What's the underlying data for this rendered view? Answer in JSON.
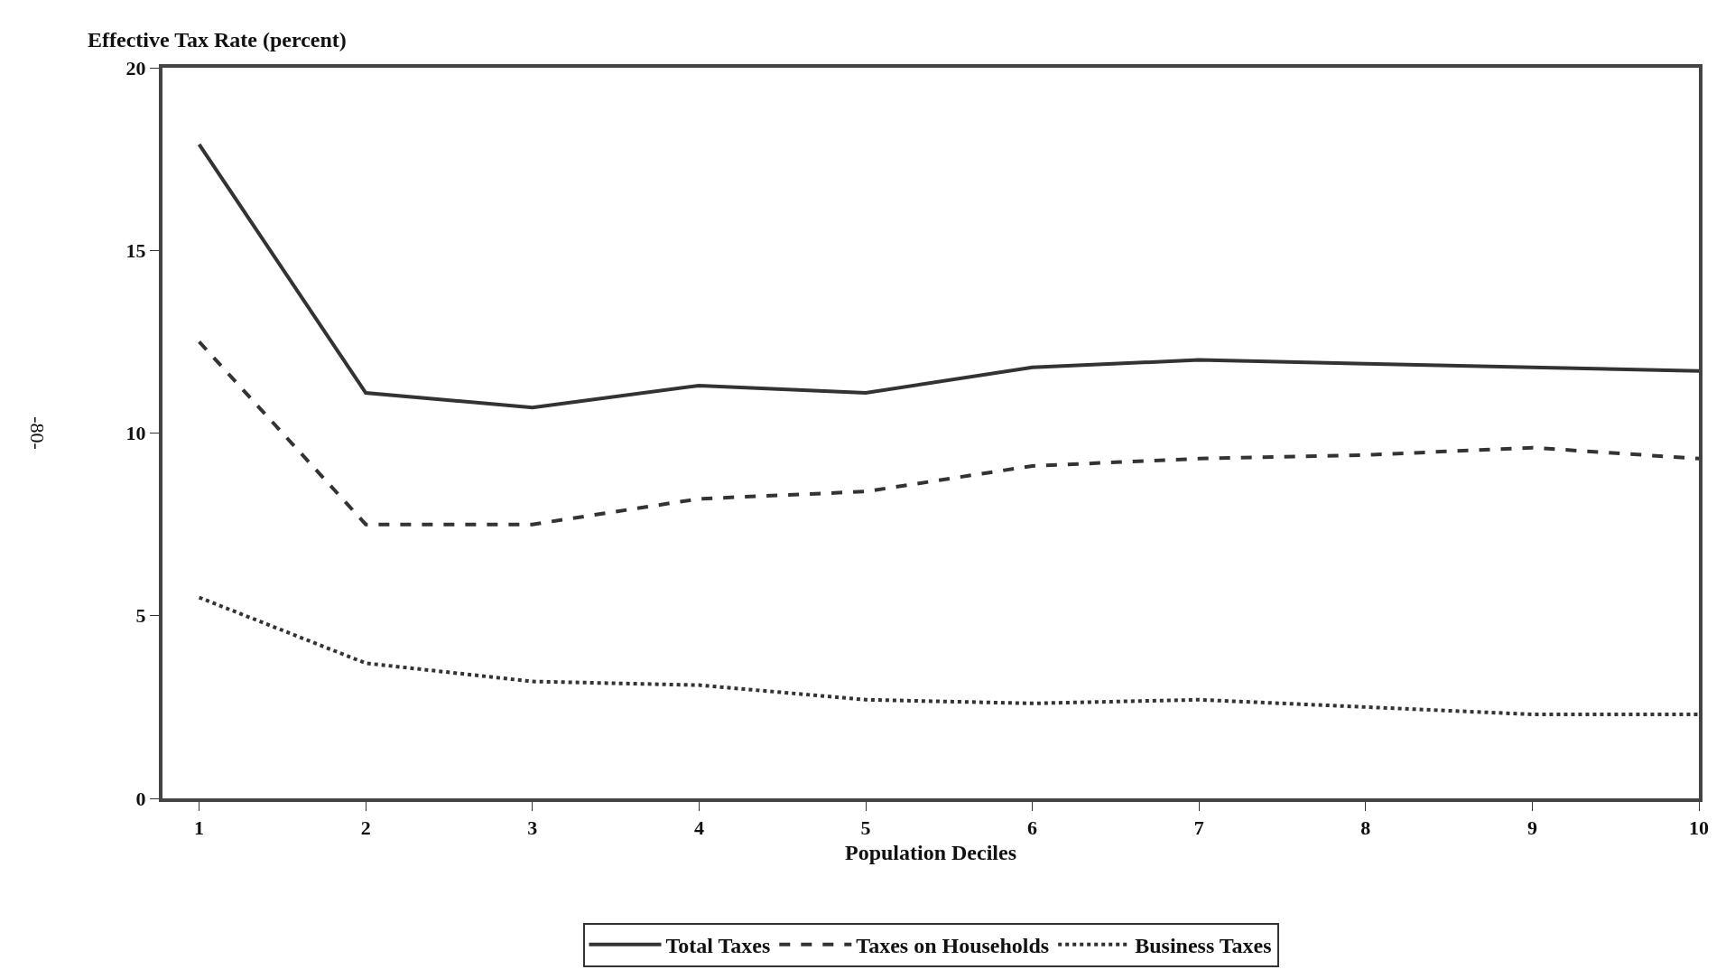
{
  "chart_data": {
    "type": "line",
    "ylabel": "Effective Tax Rate (percent)",
    "xlabel": "Population Deciles",
    "x": [
      1,
      2,
      3,
      4,
      5,
      6,
      7,
      8,
      9,
      10
    ],
    "xlim": [
      0.78,
      10
    ],
    "xticks": [
      1,
      2,
      3,
      4,
      5,
      6,
      7,
      8,
      9,
      10
    ],
    "ylim": [
      0,
      20
    ],
    "yticks": [
      0,
      5,
      10,
      15,
      20
    ],
    "legend": "bottom",
    "marker": "none",
    "annotations": [
      "-80-"
    ],
    "series": [
      {
        "name": "Total Taxes",
        "color": "#333333",
        "line_style": "solid",
        "values": [
          17.9,
          11.1,
          10.7,
          11.3,
          11.1,
          11.8,
          12.0,
          11.9,
          11.8,
          11.7
        ]
      },
      {
        "name": "Taxes on Households",
        "color": "#333333",
        "line_style": "dashed",
        "values": [
          12.5,
          7.5,
          7.5,
          8.2,
          8.4,
          9.1,
          9.3,
          9.4,
          9.6,
          9.3
        ]
      },
      {
        "name": "Business Taxes",
        "color": "#333333",
        "line_style": "dotted",
        "values": [
          5.5,
          3.7,
          3.2,
          3.1,
          2.7,
          2.6,
          2.7,
          2.5,
          2.3,
          2.3
        ]
      }
    ]
  }
}
